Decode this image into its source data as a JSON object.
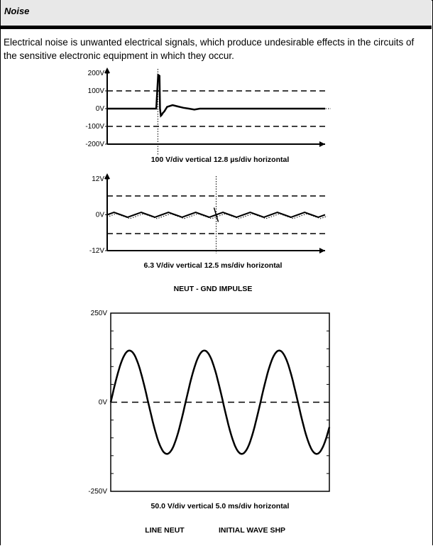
{
  "section": {
    "title": "Noise",
    "body": "Electrical noise is unwanted electrical signals, which produce undesirable effects in the circuits of the sensitive electronic equipment in which they occur."
  },
  "chart_data": [
    {
      "type": "line",
      "y_ticks": [
        "200V",
        "100V",
        "0V",
        "-100V",
        "-200V"
      ],
      "ylim": [
        -200,
        200
      ],
      "caption": "100 V/div vertical 12.8 µs/div horizontal",
      "series": [
        {
          "x": [
            0,
            0.9,
            0.935,
            0.96,
            0.97,
            0.985,
            1.0,
            1.02,
            1.05,
            1.1,
            1.2,
            1.3,
            1.4,
            1.5,
            1.6,
            1.7,
            2.0,
            4.0
          ],
          "values": [
            0,
            0,
            190,
            185,
            0,
            -40,
            -35,
            -25,
            -15,
            10,
            20,
            12,
            5,
            0,
            -5,
            0,
            0,
            0
          ]
        }
      ]
    },
    {
      "type": "line",
      "y_ticks": [
        "12V",
        "0V",
        "-12V"
      ],
      "ylim": [
        -12,
        12
      ],
      "caption": "6.3 V/div vertical 12.5 ms/div horizontal",
      "subtitle": "NEUT - GND IMPULSE",
      "series": [
        {
          "x": [
            0,
            0.25,
            0.5,
            0.75,
            1,
            1.25,
            1.5,
            1.75,
            2,
            2.25,
            2.5,
            2.75,
            3,
            3.25,
            3.5,
            3.75,
            4,
            4.25,
            4.5,
            4.75,
            5,
            5.25,
            5.5,
            5.75,
            6,
            6.25,
            6.5,
            6.75,
            7,
            7.25,
            7.5,
            7.75,
            8
          ],
          "values": [
            0,
            0.8,
            0,
            -0.8,
            0,
            0.8,
            0,
            -0.8,
            0,
            0.8,
            0,
            -0.8,
            0,
            0.8,
            0,
            -0.8,
            0,
            0.8,
            0,
            -0.8,
            0,
            0.8,
            0,
            -0.8,
            0,
            0.8,
            0,
            -0.8,
            0,
            0.8,
            0,
            -0.8,
            0
          ]
        }
      ]
    },
    {
      "type": "line",
      "y_ticks": [
        "250V",
        "0V",
        "-250V"
      ],
      "ylim": [
        -250,
        250
      ],
      "caption": "50.0 V/div vertical 5.0 ms/div horizontal",
      "footer_labels": [
        "LINE NEUT",
        "INITIAL WAVE SHP"
      ],
      "series": [
        {
          "cycles": 2.92,
          "amplitude": 145
        }
      ]
    }
  ]
}
